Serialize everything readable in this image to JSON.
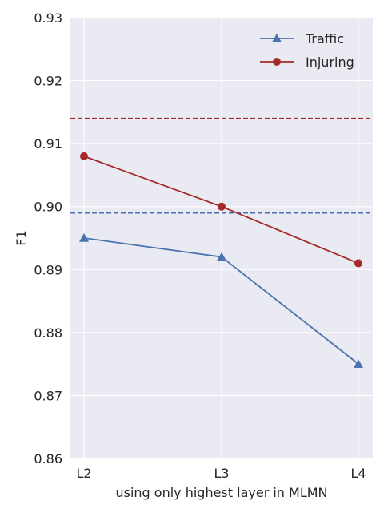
{
  "chart_data": {
    "type": "line",
    "categories": [
      "L2",
      "L3",
      "L4"
    ],
    "xlabel": "using only highest layer in MLMN",
    "ylabel": "F1",
    "ylim": [
      0.86,
      0.93
    ],
    "yticks": [
      "0.86",
      "0.87",
      "0.88",
      "0.89",
      "0.90",
      "0.91",
      "0.92",
      "0.93"
    ],
    "grid": true,
    "legend_position": "top-right",
    "series": [
      {
        "name": "Traffic",
        "values": [
          0.895,
          0.892,
          0.875
        ],
        "color": "#4c72b0",
        "marker": "triangle",
        "baseline": 0.899
      },
      {
        "name": "Injuring",
        "values": [
          0.908,
          0.9,
          0.891
        ],
        "color": "#a52a2a",
        "marker": "circle",
        "baseline": 0.914
      }
    ]
  }
}
